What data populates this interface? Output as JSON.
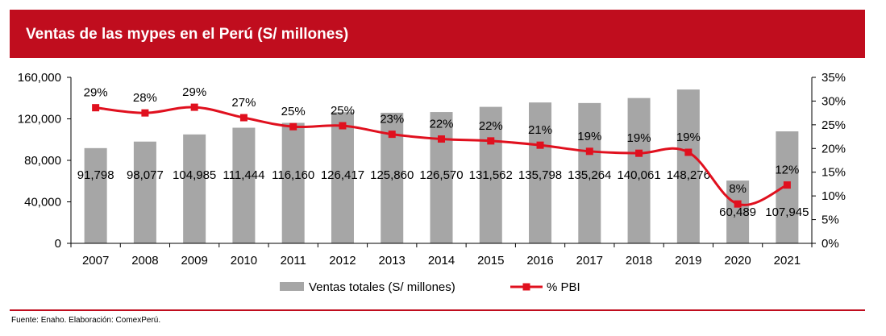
{
  "title": "Ventas de las mypes en el Perú (S/ millones)",
  "source": "Fuente: Enaho. Elaboración: ComexPerú.",
  "colors": {
    "banner": "#c00d1e",
    "bar": "#a6a6a6",
    "line": "#e0101e",
    "axis": "#000000"
  },
  "chart_data": {
    "type": "bar",
    "title": "Ventas de las mypes en el Perú (S/ millones)",
    "categories": [
      "2007",
      "2008",
      "2009",
      "2010",
      "2011",
      "2012",
      "2013",
      "2014",
      "2015",
      "2016",
      "2017",
      "2018",
      "2019",
      "2020",
      "2021"
    ],
    "series": [
      {
        "name": "Ventas totales (S/ millones)",
        "type": "bar",
        "axis": "left",
        "values": [
          91798,
          98077,
          104985,
          111444,
          116160,
          126417,
          125860,
          126570,
          131562,
          135798,
          135264,
          140061,
          148276,
          60489,
          107945
        ],
        "labels": [
          "91,798",
          "98,077",
          "104,985",
          "111,444",
          "116,160",
          "126,417",
          "125,860",
          "126,570",
          "131,562",
          "135,798",
          "135,264",
          "140,061",
          "148,276",
          "60,489",
          "107,945"
        ]
      },
      {
        "name": "% PBI",
        "type": "line",
        "axis": "right",
        "values": [
          28.6,
          27.5,
          28.7,
          26.5,
          24.6,
          24.8,
          23.0,
          22.0,
          21.6,
          20.7,
          19.4,
          19.0,
          19.2,
          8.3,
          12.3
        ],
        "labels": [
          "29%",
          "28%",
          "29%",
          "27%",
          "25%",
          "25%",
          "23%",
          "22%",
          "22%",
          "21%",
          "19%",
          "19%",
          "19%",
          "8%",
          "12%"
        ]
      }
    ],
    "y_left": {
      "min": 0,
      "max": 160000,
      "ticks": [
        "0",
        "40,000",
        "80,000",
        "120,000",
        "160,000"
      ]
    },
    "y_right": {
      "min": 0,
      "max": 35,
      "ticks": [
        "0%",
        "5%",
        "10%",
        "15%",
        "20%",
        "25%",
        "30%",
        "35%"
      ]
    },
    "legend": [
      "Ventas totales (S/ millones)",
      "% PBI"
    ],
    "legend_position": "bottom",
    "grid": false
  }
}
